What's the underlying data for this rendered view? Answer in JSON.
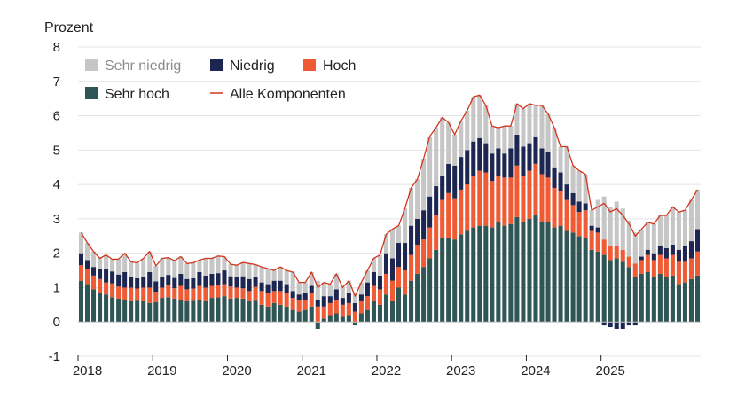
{
  "chart_data": {
    "type": "bar",
    "ylabel": "Prozent",
    "ylim": [
      -1,
      8
    ],
    "yticks": [
      "-1",
      "0",
      "1",
      "2",
      "3",
      "4",
      "5",
      "6",
      "7",
      "8"
    ],
    "year_labels": [
      "2018",
      "2019",
      "2020",
      "2021",
      "2022",
      "2023",
      "2024",
      "2025"
    ],
    "grid": true,
    "legend": {
      "placement": "top-left",
      "items": [
        {
          "key": "very_low",
          "label": "Sehr niedrig"
        },
        {
          "key": "low",
          "label": "Niedrig"
        },
        {
          "key": "high",
          "label": "Hoch"
        },
        {
          "key": "very_high",
          "label": "Sehr hoch"
        },
        {
          "key": "total",
          "label": "Alle Komponenten"
        }
      ]
    },
    "colors": {
      "very_high": "#2f5654",
      "high": "#ee5b35",
      "low": "#1d2651",
      "very_low": "#c6c6c6",
      "total": "#d2341c",
      "text_muted": "#8c8c8c",
      "grid": "#e4e4e4"
    },
    "x_start": "2018-01",
    "series": [
      {
        "name": "Sehr hoch",
        "key": "very_high",
        "values": [
          1.2,
          1.1,
          0.95,
          0.85,
          0.8,
          0.72,
          0.68,
          0.65,
          0.6,
          0.62,
          0.6,
          0.55,
          0.58,
          0.7,
          0.72,
          0.68,
          0.65,
          0.6,
          0.62,
          0.65,
          0.6,
          0.7,
          0.72,
          0.75,
          0.68,
          0.7,
          0.68,
          0.6,
          0.62,
          0.5,
          0.45,
          0.55,
          0.5,
          0.45,
          0.35,
          0.3,
          0.35,
          0.45,
          -0.2,
          0.1,
          0.2,
          0.25,
          0.15,
          0.2,
          -0.1,
          0.25,
          0.35,
          0.6,
          0.5,
          0.8,
          0.6,
          1.0,
          0.8,
          1.2,
          1.4,
          1.6,
          1.85,
          2.1,
          2.45,
          2.45,
          2.4,
          2.55,
          2.65,
          2.75,
          2.8,
          2.8,
          2.75,
          2.9,
          2.8,
          2.85,
          3.05,
          2.9,
          3.0,
          3.1,
          2.9,
          2.9,
          2.75,
          2.8,
          2.65,
          2.6,
          2.5,
          2.45,
          2.1,
          2.05,
          1.95,
          1.8,
          1.85,
          1.75,
          1.6,
          1.3,
          1.4,
          1.45,
          1.3,
          1.4,
          1.3,
          1.35,
          1.1,
          1.15,
          1.25,
          1.35
        ]
      },
      {
        "name": "Hoch",
        "key": "high",
        "values": [
          0.45,
          0.45,
          0.4,
          0.4,
          0.35,
          0.4,
          0.35,
          0.35,
          0.4,
          0.35,
          0.4,
          0.45,
          0.3,
          0.3,
          0.35,
          0.3,
          0.4,
          0.35,
          0.35,
          0.4,
          0.4,
          0.35,
          0.35,
          0.35,
          0.35,
          0.3,
          0.3,
          0.3,
          0.4,
          0.4,
          0.4,
          0.35,
          0.4,
          0.4,
          0.35,
          0.35,
          0.3,
          0.4,
          0.45,
          0.35,
          0.35,
          0.4,
          0.35,
          0.35,
          0.3,
          0.35,
          0.4,
          0.45,
          0.45,
          0.6,
          0.6,
          0.6,
          0.7,
          0.75,
          0.85,
          0.8,
          0.9,
          1.0,
          1.1,
          1.3,
          1.2,
          1.3,
          1.35,
          1.5,
          1.6,
          1.55,
          1.35,
          1.35,
          1.4,
          1.35,
          1.5,
          1.35,
          1.4,
          1.5,
          1.4,
          1.3,
          1.15,
          1.0,
          0.9,
          0.8,
          0.7,
          0.8,
          0.55,
          0.55,
          0.45,
          0.4,
          0.35,
          0.35,
          0.3,
          0.4,
          0.4,
          0.5,
          0.5,
          0.55,
          0.55,
          0.6,
          0.65,
          0.6,
          0.6,
          0.7
        ]
      },
      {
        "name": "Niedrig",
        "key": "low",
        "values": [
          0.35,
          0.25,
          0.25,
          0.3,
          0.4,
          0.35,
          0.35,
          0.45,
          0.3,
          0.3,
          0.3,
          0.45,
          0.3,
          0.3,
          0.3,
          0.3,
          0.35,
          0.3,
          0.3,
          0.4,
          0.35,
          0.35,
          0.35,
          0.4,
          0.3,
          0.3,
          0.35,
          0.35,
          0.3,
          0.25,
          0.25,
          0.3,
          0.3,
          0.25,
          0.2,
          0.15,
          0.2,
          0.2,
          0.2,
          0.3,
          0.2,
          0.3,
          0.2,
          0.3,
          0.25,
          0.2,
          0.4,
          0.4,
          0.4,
          0.6,
          0.65,
          0.7,
          0.8,
          0.85,
          0.75,
          0.85,
          0.9,
          0.85,
          0.7,
          0.85,
          0.95,
          0.95,
          1.0,
          1.0,
          0.95,
          0.85,
          0.8,
          0.8,
          0.7,
          0.85,
          0.9,
          0.85,
          0.8,
          0.8,
          0.75,
          0.75,
          0.6,
          0.55,
          0.45,
          0.35,
          0.3,
          0.2,
          0.15,
          0.15,
          -0.1,
          -0.15,
          -0.2,
          -0.2,
          -0.1,
          -0.1,
          0.1,
          0.15,
          0.2,
          0.25,
          0.3,
          0.3,
          0.35,
          0.45,
          0.5,
          0.65
        ]
      },
      {
        "name": "Sehr niedrig",
        "key": "very_low",
        "values": [
          0.6,
          0.5,
          0.45,
          0.3,
          0.4,
          0.35,
          0.45,
          0.55,
          0.45,
          0.45,
          0.55,
          0.6,
          0.45,
          0.55,
          0.5,
          0.5,
          0.5,
          0.45,
          0.45,
          0.35,
          0.5,
          0.45,
          0.5,
          0.4,
          0.35,
          0.35,
          0.4,
          0.45,
          0.35,
          0.45,
          0.45,
          0.3,
          0.4,
          0.4,
          0.55,
          0.35,
          0.3,
          0.4,
          0.55,
          0.4,
          0.35,
          0.45,
          0.3,
          0.35,
          0.3,
          0.35,
          0.35,
          0.4,
          0.6,
          0.55,
          0.85,
          0.5,
          1.0,
          1.1,
          1.15,
          1.5,
          1.75,
          1.7,
          1.7,
          1.2,
          0.9,
          1.05,
          1.15,
          1.3,
          1.25,
          1.1,
          0.8,
          0.6,
          0.8,
          0.65,
          0.9,
          1.1,
          1.15,
          0.9,
          1.25,
          1.1,
          1.15,
          0.75,
          1.1,
          0.8,
          0.9,
          0.85,
          0.45,
          0.8,
          1.25,
          1.15,
          1.3,
          1.2,
          1.05,
          0.9,
          0.8,
          0.8,
          0.85,
          0.9,
          0.95,
          1.1,
          1.1,
          1.05,
          1.2,
          1.15
        ]
      },
      {
        "name": "Alle Komponenten",
        "key": "total",
        "type": "line",
        "values": [
          2.6,
          2.3,
          2.05,
          1.85,
          1.95,
          1.82,
          1.83,
          2.0,
          1.75,
          1.72,
          1.85,
          2.05,
          1.63,
          1.85,
          1.87,
          1.78,
          1.9,
          1.7,
          1.72,
          1.8,
          1.85,
          1.85,
          1.92,
          1.9,
          1.68,
          1.65,
          1.73,
          1.7,
          1.67,
          1.6,
          1.55,
          1.5,
          1.6,
          1.5,
          1.45,
          1.15,
          1.15,
          1.45,
          1.0,
          1.15,
          1.1,
          1.4,
          1.0,
          1.2,
          0.75,
          1.15,
          1.5,
          1.85,
          1.95,
          2.55,
          2.7,
          2.8,
          3.3,
          3.9,
          4.15,
          4.75,
          5.4,
          5.65,
          5.95,
          5.8,
          5.45,
          5.85,
          6.15,
          6.55,
          6.6,
          6.3,
          5.7,
          5.65,
          5.7,
          5.7,
          6.35,
          6.2,
          6.35,
          6.3,
          6.3,
          6.05,
          5.65,
          5.1,
          5.1,
          4.55,
          4.4,
          4.3,
          3.25,
          3.35,
          3.45,
          3.2,
          3.3,
          3.1,
          2.85,
          2.5,
          2.7,
          2.9,
          2.85,
          3.1,
          3.1,
          3.35,
          3.2,
          3.25,
          3.55,
          3.85
        ]
      }
    ]
  }
}
